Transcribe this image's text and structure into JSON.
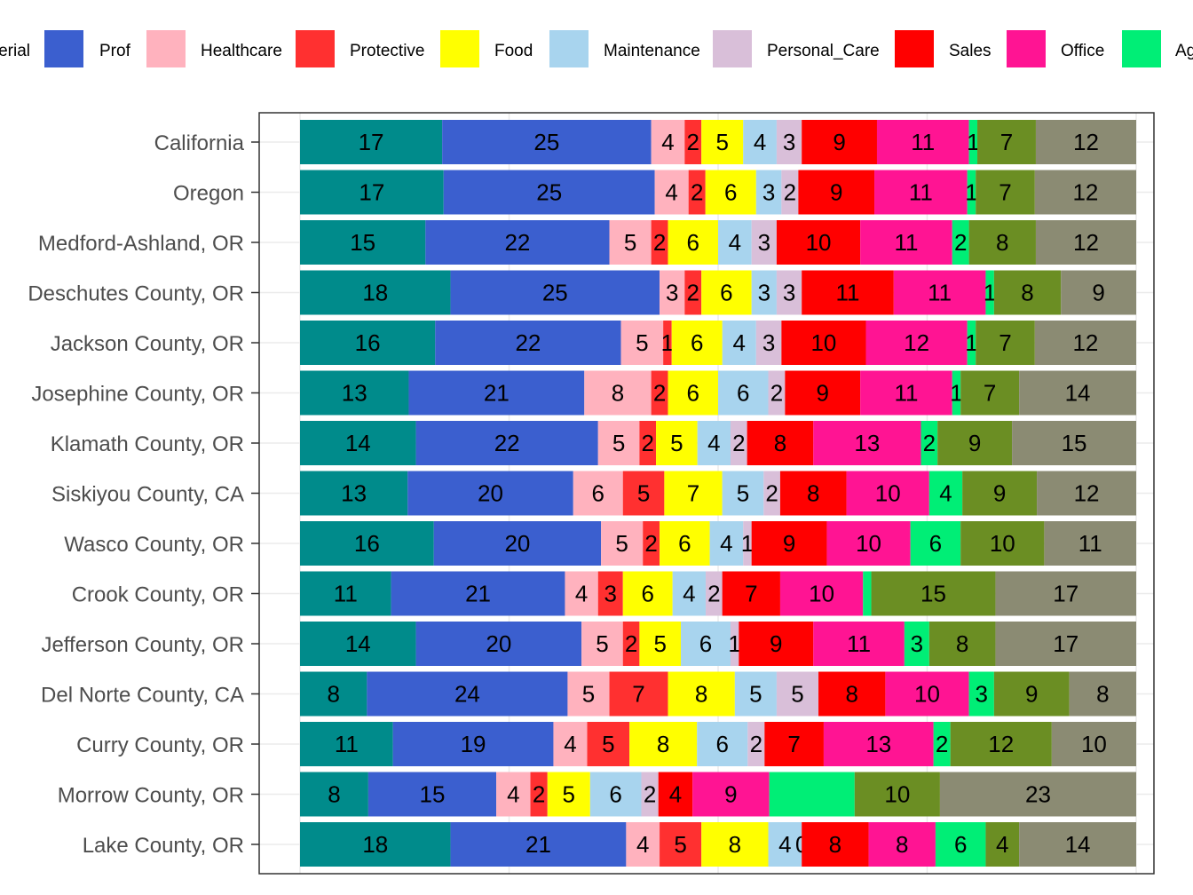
{
  "chart_data": {
    "type": "bar",
    "orientation": "horizontal",
    "stacked": true,
    "normalized": true,
    "grid": true,
    "legend_position": "top",
    "title": "",
    "xlabel": "",
    "ylabel": "",
    "categories": [
      "California",
      "Oregon",
      "Medford-Ashland, OR",
      "Deschutes County, OR",
      "Jackson County, OR",
      "Josephine County, OR",
      "Klamath County, OR",
      "Siskiyou County, CA",
      "Wasco County, OR",
      "Crook County, OR",
      "Jefferson County, OR",
      "Del Norte County, CA",
      "Curry County, OR",
      "Morrow County, OR",
      "Lake County, OR"
    ],
    "series": [
      {
        "name": "Managerial",
        "legend_visible_text": "erial",
        "color": "#008B8B",
        "values": [
          17,
          17,
          15,
          18,
          16,
          13,
          14,
          13,
          16,
          11,
          14,
          8,
          11,
          8,
          18
        ]
      },
      {
        "name": "Prof",
        "color": "#3B5FCF",
        "values": [
          25,
          25,
          22,
          25,
          22,
          21,
          22,
          20,
          20,
          21,
          20,
          24,
          19,
          15,
          21
        ]
      },
      {
        "name": "Healthcare",
        "color": "#FFB2BE",
        "values": [
          4,
          4,
          5,
          3,
          5,
          8,
          5,
          6,
          5,
          4,
          5,
          5,
          4,
          4,
          4
        ]
      },
      {
        "name": "Protective",
        "color": "#FF3030",
        "values": [
          2,
          2,
          2,
          2,
          1,
          2,
          2,
          5,
          2,
          3,
          2,
          7,
          5,
          2,
          5
        ]
      },
      {
        "name": "Food",
        "color": "#FFFF00",
        "values": [
          5,
          6,
          6,
          6,
          6,
          6,
          5,
          7,
          6,
          6,
          5,
          8,
          8,
          5,
          8
        ]
      },
      {
        "name": "Maintenance",
        "color": "#A8D4EE",
        "values": [
          4,
          3,
          4,
          3,
          4,
          6,
          4,
          5,
          4,
          4,
          6,
          5,
          6,
          6,
          4
        ]
      },
      {
        "name": "Personal_Care",
        "color": "#D9BFD9",
        "values": [
          3,
          2,
          3,
          3,
          3,
          2,
          2,
          2,
          1,
          2,
          1,
          5,
          2,
          2,
          0
        ]
      },
      {
        "name": "Sales",
        "color": "#FF0000",
        "values": [
          9,
          9,
          10,
          11,
          10,
          9,
          8,
          8,
          9,
          7,
          9,
          8,
          7,
          4,
          8
        ]
      },
      {
        "name": "Office",
        "color": "#FF1493",
        "values": [
          11,
          11,
          11,
          11,
          12,
          11,
          13,
          10,
          10,
          10,
          11,
          10,
          13,
          9,
          8
        ]
      },
      {
        "name": "Ag",
        "legend_visible_text": "Ag",
        "color": "#00EE76",
        "values": [
          1,
          1,
          2,
          1,
          1,
          1,
          2,
          4,
          6,
          1,
          3,
          3,
          2,
          10,
          6
        ]
      },
      {
        "name": "",
        "color": "#6B8E23",
        "values": [
          7,
          7,
          8,
          8,
          7,
          7,
          9,
          9,
          10,
          15,
          8,
          9,
          12,
          10,
          4
        ]
      },
      {
        "name": "",
        "color": "#8B8B73",
        "values": [
          12,
          12,
          12,
          9,
          12,
          14,
          15,
          12,
          11,
          17,
          17,
          8,
          10,
          23,
          14
        ]
      }
    ],
    "bar_label_visibility": [
      [
        1,
        1,
        1,
        1,
        1,
        1,
        1,
        1,
        1,
        1,
        1,
        1
      ],
      [
        1,
        1,
        1,
        1,
        1,
        1,
        1,
        1,
        1,
        1,
        1,
        1
      ],
      [
        1,
        1,
        1,
        1,
        1,
        1,
        1,
        1,
        1,
        1,
        1,
        1
      ],
      [
        1,
        1,
        1,
        1,
        1,
        1,
        1,
        1,
        1,
        1,
        1,
        1
      ],
      [
        1,
        1,
        1,
        1,
        1,
        1,
        1,
        1,
        1,
        1,
        1,
        1
      ],
      [
        1,
        1,
        1,
        1,
        1,
        1,
        1,
        1,
        1,
        1,
        1,
        1
      ],
      [
        1,
        1,
        1,
        1,
        1,
        1,
        1,
        1,
        1,
        1,
        1,
        1
      ],
      [
        1,
        1,
        1,
        1,
        1,
        1,
        1,
        1,
        1,
        1,
        1,
        1
      ],
      [
        1,
        1,
        1,
        1,
        1,
        1,
        1,
        1,
        1,
        1,
        1,
        1
      ],
      [
        1,
        1,
        1,
        1,
        1,
        1,
        1,
        1,
        1,
        0,
        1,
        1
      ],
      [
        1,
        1,
        1,
        1,
        1,
        1,
        1,
        1,
        1,
        1,
        1,
        1
      ],
      [
        1,
        1,
        1,
        1,
        1,
        1,
        1,
        1,
        1,
        1,
        1,
        1
      ],
      [
        1,
        1,
        1,
        1,
        1,
        1,
        1,
        1,
        1,
        1,
        1,
        1
      ],
      [
        1,
        1,
        1,
        1,
        1,
        1,
        1,
        1,
        1,
        0,
        1,
        1
      ],
      [
        1,
        1,
        1,
        1,
        1,
        1,
        1,
        1,
        1,
        1,
        1,
        1
      ]
    ]
  }
}
